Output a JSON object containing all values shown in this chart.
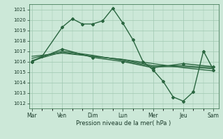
{
  "bg_color": "#cce8d8",
  "grid_color": "#9fc8b0",
  "line_color": "#2a6640",
  "xlabel": "Pression niveau de la mer( hPa )",
  "ylim": [
    1011.5,
    1021.5
  ],
  "yticks": [
    1012,
    1013,
    1014,
    1015,
    1016,
    1017,
    1018,
    1019,
    1020,
    1021
  ],
  "xtick_labels": [
    "Mar",
    "Ven",
    "Dim",
    "Lun",
    "Mer",
    "Jeu",
    "Sam"
  ],
  "xtick_positions": [
    0,
    3,
    6,
    9,
    12,
    15,
    18
  ],
  "xlim": [
    -0.3,
    18.5
  ],
  "series": [
    {
      "x": [
        0,
        1,
        3,
        4,
        5,
        6,
        7,
        8,
        9,
        10,
        11,
        12,
        13,
        14,
        15,
        16,
        17,
        18
      ],
      "y": [
        1016.0,
        1016.5,
        1019.3,
        1020.1,
        1019.6,
        1019.6,
        1019.9,
        1021.1,
        1019.7,
        1018.1,
        1016.0,
        1015.2,
        1014.1,
        1012.6,
        1012.2,
        1013.1,
        1017.0,
        1015.2
      ],
      "marker": "D",
      "markersize": 2.0,
      "linewidth": 1.0
    },
    {
      "x": [
        0,
        3,
        6,
        9,
        12,
        15,
        18
      ],
      "y": [
        1016.5,
        1016.8,
        1016.5,
        1016.2,
        1015.8,
        1015.4,
        1015.1
      ],
      "marker": null,
      "linewidth": 0.9
    },
    {
      "x": [
        0,
        3,
        6,
        9,
        12,
        15,
        18
      ],
      "y": [
        1016.3,
        1017.0,
        1016.6,
        1016.1,
        1015.5,
        1015.5,
        1015.3
      ],
      "marker": null,
      "linewidth": 0.9
    },
    {
      "x": [
        0,
        3,
        6,
        9,
        12,
        15,
        18
      ],
      "y": [
        1016.1,
        1016.9,
        1016.5,
        1016.2,
        1015.6,
        1015.6,
        1015.4
      ],
      "marker": null,
      "linewidth": 0.9
    },
    {
      "x": [
        0,
        3,
        6,
        9,
        12,
        15,
        18
      ],
      "y": [
        1016.0,
        1017.2,
        1016.4,
        1016.0,
        1015.4,
        1015.8,
        1015.5
      ],
      "marker": "D",
      "markersize": 2.0,
      "linewidth": 1.0
    }
  ],
  "xlabel_fontsize": 6.0,
  "ytick_fontsize": 5.0,
  "xtick_fontsize": 5.5
}
